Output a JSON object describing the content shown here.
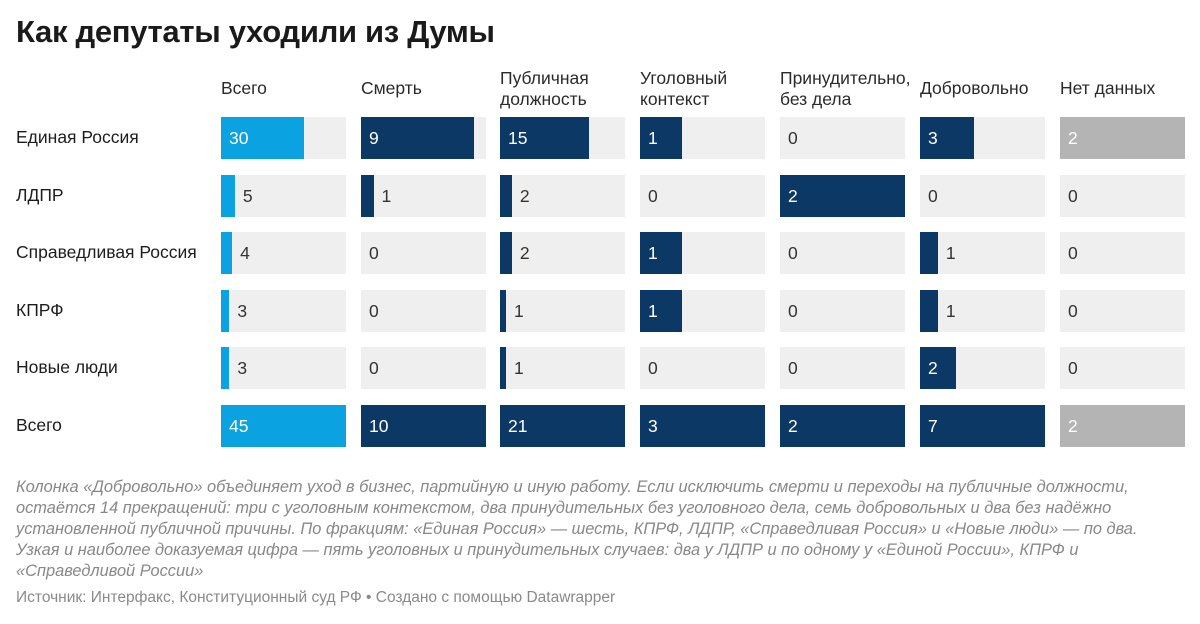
{
  "title": "Как депутаты уходили из Думы",
  "columns": [
    {
      "label": "Всего",
      "color": "#0ba2e2"
    },
    {
      "label": "Смерть",
      "color": "#0b3864"
    },
    {
      "label": "Публичная должность",
      "color": "#0b3864"
    },
    {
      "label": "Уголовный контекст",
      "color": "#0b3864"
    },
    {
      "label": "Принудительно, без дела",
      "color": "#0b3864"
    },
    {
      "label": "Добровольно",
      "color": "#0b3864"
    },
    {
      "label": "Нет данных",
      "color": "#b4b4b4"
    }
  ],
  "chart_data": {
    "type": "table",
    "rows": [
      {
        "label": "Единая Россия",
        "values": [
          30,
          9,
          15,
          1,
          0,
          3,
          2
        ]
      },
      {
        "label": "ЛДПР",
        "values": [
          5,
          1,
          2,
          0,
          2,
          0,
          0
        ]
      },
      {
        "label": "Справедливая Россия",
        "values": [
          4,
          0,
          2,
          1,
          0,
          1,
          0
        ]
      },
      {
        "label": "КПРФ",
        "values": [
          3,
          0,
          1,
          1,
          0,
          1,
          0
        ]
      },
      {
        "label": "Новые люди",
        "values": [
          3,
          0,
          1,
          0,
          0,
          2,
          0
        ]
      },
      {
        "label": "Всего",
        "values": [
          45,
          10,
          21,
          3,
          2,
          7,
          2
        ]
      }
    ]
  },
  "note": "Колонка «Добровольно» объединяет уход в бизнес, партийную и иную работу. Если исключить смерти и переходы на публичные должности, остаётся 14 прекращений: три с уголовным контекстом, два принудительных без уголовного дела, семь добровольных и два без надёжно установленной публичной причины. По фракциям: «Единая Россия» — шесть, КПРФ, ЛДПР, «Справедливая Россия» и «Новые люди» — по два. Узкая и наиболее доказуемая цифра — пять уголовных и принудительных случаев: два у ЛДПР и по одному у «Единой России», КПРФ и «Справедливой России»",
  "source": "Источник: Интерфакс, Конституционный суд РФ • Создано с помощью Datawrapper"
}
